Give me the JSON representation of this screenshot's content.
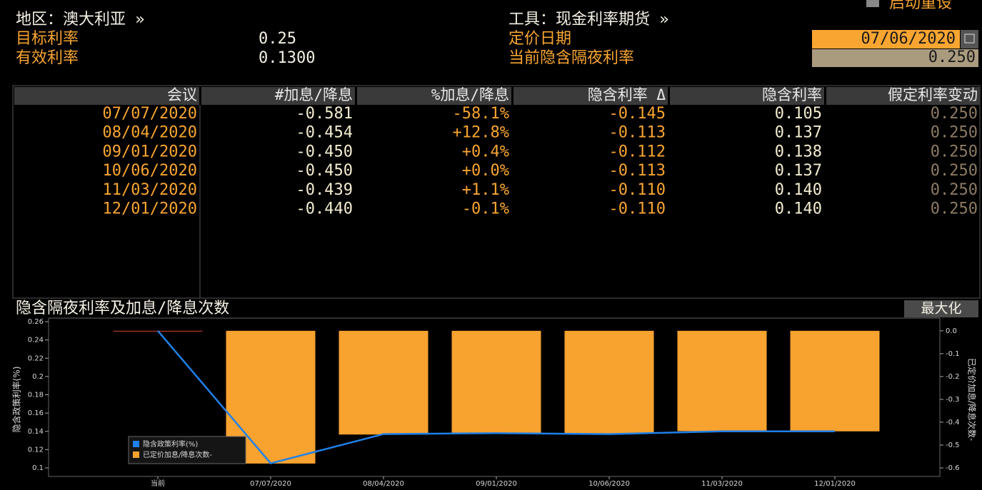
{
  "header": {
    "region": "地区：澳大利亚 »",
    "instrument": "工具：现金利率期货 »",
    "reset": "启动重设",
    "target_rate_label": "目标利率",
    "target_rate": "0.25",
    "effective_rate_label": "有效利率",
    "effective_rate": "0.1300",
    "pricing_date_label": "定价日期",
    "pricing_date": "07/06/2020",
    "implied_rate_label": "当前隐含隔夜利率",
    "implied_rate": "0.250"
  },
  "table": {
    "columns": [
      "会议",
      "#加息/降息",
      "%加息/降息",
      "隐含利率 Δ",
      "隐含利率",
      "假定利率变动"
    ],
    "rows": [
      [
        "07/07/2020",
        "-0.581",
        "-58.1%",
        "-0.145",
        "0.105",
        "0.250"
      ],
      [
        "08/04/2020",
        "-0.454",
        "+12.8%",
        "-0.113",
        "0.137",
        "0.250"
      ],
      [
        "09/01/2020",
        "-0.450",
        "+0.4%",
        "-0.112",
        "0.138",
        "0.250"
      ],
      [
        "10/06/2020",
        "-0.450",
        "+0.0%",
        "-0.113",
        "0.137",
        "0.250"
      ],
      [
        "11/03/2020",
        "-0.439",
        "+1.1%",
        "-0.110",
        "0.140",
        "0.250"
      ],
      [
        "12/01/2020",
        "-0.440",
        "-0.1%",
        "-0.110",
        "0.140",
        "0.250"
      ]
    ]
  },
  "chart_panel": {
    "maximize": "最大化"
  },
  "chart_data": {
    "type": "combo",
    "title": "隐含隔夜利率及加息/降息次数",
    "ylabel": "隐含政策利率(%)",
    "y2label": "已定价加息/降息次数-",
    "categories": [
      "当前",
      "07/07/2020",
      "08/04/2020",
      "09/01/2020",
      "10/06/2020",
      "11/03/2020",
      "12/01/2020"
    ],
    "series": [
      {
        "name": "隐含政策利率(%)",
        "type": "line",
        "color": "#1f80ea",
        "values": [
          0.25,
          0.105,
          0.137,
          0.138,
          0.137,
          0.14,
          0.14
        ]
      },
      {
        "name": "已定价加息/降息次数-",
        "type": "bar",
        "axis": "y2",
        "color": "#f8a22f",
        "values": [
          0,
          -0.581,
          -0.454,
          -0.45,
          -0.45,
          -0.439,
          -0.44
        ]
      }
    ],
    "ylim": [
      0.1,
      0.26
    ],
    "yticks": [
      0.1,
      0.12,
      0.14,
      0.16,
      0.18,
      0.2,
      0.22,
      0.24,
      0.26
    ],
    "y2lim": [
      -0.6,
      0.04
    ],
    "y2ticks": [
      {
        "value": 0,
        "label": "0.0"
      },
      -0.1,
      -0.2,
      -0.3,
      -0.4,
      -0.5,
      -0.6
    ],
    "legend": "lower-left"
  }
}
